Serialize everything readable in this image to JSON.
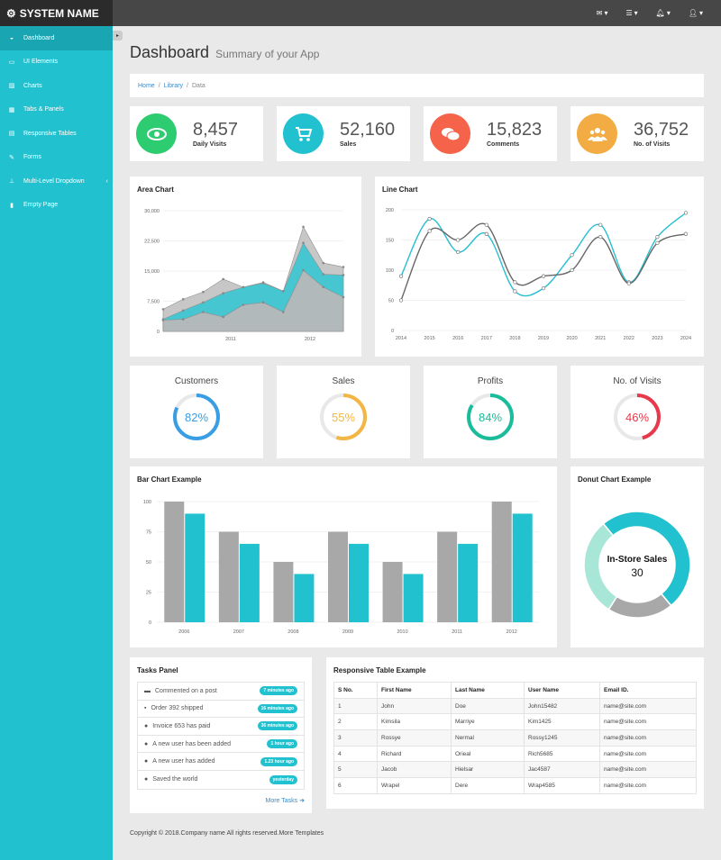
{
  "brand": {
    "name": "SYSTEM NAME",
    "icon": "gear-icon"
  },
  "topbar": {
    "icons": [
      "envelope-icon",
      "tasks-icon",
      "bell-icon",
      "user-icon"
    ]
  },
  "sidebar": {
    "items": [
      {
        "label": "Dashboard",
        "icon": "dashboard-icon",
        "active": true
      },
      {
        "label": "UI Elements",
        "icon": "desktop-icon"
      },
      {
        "label": "Charts",
        "icon": "chart-icon"
      },
      {
        "label": "Tabs & Panels",
        "icon": "table-icon"
      },
      {
        "label": "Responsive Tables",
        "icon": "list-icon"
      },
      {
        "label": "Forms",
        "icon": "edit-icon"
      },
      {
        "label": "Multi-Level Dropdown",
        "icon": "sitemap-icon",
        "caret": true
      },
      {
        "label": "Empty Page",
        "icon": "file-icon"
      }
    ]
  },
  "page": {
    "title": "Dashboard",
    "subtitle": "Summary of your App"
  },
  "breadcrumb": {
    "home": "Home",
    "library": "Library",
    "current": "Data"
  },
  "stats": [
    {
      "value": "8,457",
      "label": "Daily Visits",
      "color": "#2ecc71",
      "icon": "eye-icon"
    },
    {
      "value": "52,160",
      "label": "Sales",
      "color": "#22c1cf",
      "icon": "cart-icon"
    },
    {
      "value": "15,823",
      "label": "Comments",
      "color": "#f4634a",
      "icon": "comments-icon"
    },
    {
      "value": "36,752",
      "label": "No. of Visits",
      "color": "#f3ac44",
      "icon": "users-icon"
    }
  ],
  "area_chart": {
    "title": "Area Chart"
  },
  "line_chart": {
    "title": "Line Chart"
  },
  "gauges": [
    {
      "title": "Customers",
      "value": 82,
      "label": "82%",
      "color": "#3a9ee4"
    },
    {
      "title": "Sales",
      "value": 55,
      "label": "55%",
      "color": "#f3b544"
    },
    {
      "title": "Profits",
      "value": 84,
      "label": "84%",
      "color": "#1bbc9b"
    },
    {
      "title": "No. of Visits",
      "value": 46,
      "label": "46%",
      "color": "#e8394b"
    }
  ],
  "bar_chart": {
    "title": "Bar Chart Example"
  },
  "donut_chart": {
    "title": "Donut Chart Example",
    "center_label": "In-Store Sales",
    "center_value": "30"
  },
  "tasks": {
    "title": "Tasks Panel",
    "items": [
      {
        "icon": "comment-icon",
        "text": "Commented on a post",
        "badge": "7 minutes ago"
      },
      {
        "icon": "truck-icon",
        "text": "Order 392 shipped",
        "badge": "16 minutes ago"
      },
      {
        "icon": "globe-icon",
        "text": "Invoice 653 has paid",
        "badge": "36 minutes ago"
      },
      {
        "icon": "user-icon",
        "text": "A new user has been added",
        "badge": "1 hour ago"
      },
      {
        "icon": "user-icon",
        "text": "A new user has added",
        "badge": "1.23 hour ago"
      },
      {
        "icon": "globe-icon",
        "text": "Saved the world",
        "badge": "yesterday"
      }
    ],
    "more": "More Tasks"
  },
  "table": {
    "title": "Responsive Table Example",
    "headers": [
      "S No.",
      "First Name",
      "Last Name",
      "User Name",
      "Email ID."
    ],
    "rows": [
      [
        "1",
        "John",
        "Doe",
        "John15482",
        "name@site.com"
      ],
      [
        "2",
        "Kimsila",
        "Marriye",
        "Kim1425",
        "name@site.com"
      ],
      [
        "3",
        "Rossye",
        "Nermal",
        "Rossy1245",
        "name@site.com"
      ],
      [
        "4",
        "Richard",
        "Orieal",
        "Rich5685",
        "name@site.com"
      ],
      [
        "5",
        "Jacob",
        "Hielsar",
        "Jac4587",
        "name@site.com"
      ],
      [
        "6",
        "Wrapel",
        "Dere",
        "Wrap4585",
        "name@site.com"
      ]
    ]
  },
  "footer": {
    "text": "Copyright © 2018.Company name All rights reserved.More Templates"
  },
  "chart_data": [
    {
      "type": "area",
      "title": "Area Chart",
      "yticks": [
        "0",
        "7,500",
        "15,000",
        "22,500",
        "30,000"
      ],
      "ylim": [
        0,
        30000
      ],
      "xticks": [
        "2011",
        "2012"
      ],
      "series": [
        {
          "color": "#c4c4c4",
          "values": [
            5500,
            8000,
            9800,
            13000,
            11000,
            12200,
            10000,
            26000,
            17000,
            16000
          ]
        },
        {
          "color": "#3fc6d2",
          "values": [
            3000,
            5200,
            7200,
            9500,
            11000,
            12000,
            10000,
            22000,
            14200,
            14000
          ]
        },
        {
          "color": "#b8b8b8",
          "values": [
            2800,
            3000,
            4800,
            3600,
            6600,
            7200,
            4800,
            15200,
            11000,
            8500
          ]
        }
      ]
    },
    {
      "type": "line",
      "title": "Line Chart",
      "x": [
        2014,
        2015,
        2016,
        2017,
        2018,
        2019,
        2020,
        2021,
        2022,
        2023,
        2024
      ],
      "ylim": [
        0,
        200
      ],
      "yticks": [
        "0",
        "50",
        "100",
        "150",
        "200"
      ],
      "series": [
        {
          "color": "#26bfd0",
          "values": [
            90,
            185,
            130,
            160,
            65,
            70,
            125,
            175,
            80,
            155,
            195
          ]
        },
        {
          "color": "#666666",
          "values": [
            50,
            165,
            150,
            175,
            80,
            90,
            100,
            155,
            78,
            145,
            160
          ]
        }
      ]
    },
    {
      "type": "bar",
      "title": "Bar Chart Example",
      "categories": [
        "2006",
        "2007",
        "2008",
        "2009",
        "2010",
        "2011",
        "2012"
      ],
      "ylim": [
        0,
        100
      ],
      "yticks": [
        "0",
        "25",
        "50",
        "75",
        "100"
      ],
      "series": [
        {
          "color": "#a8a8a8",
          "values": [
            100,
            75,
            50,
            75,
            50,
            75,
            100
          ]
        },
        {
          "color": "#22c1cf",
          "values": [
            90,
            65,
            40,
            65,
            40,
            65,
            90
          ]
        }
      ]
    },
    {
      "type": "pie",
      "title": "Donut Chart Example",
      "slices": [
        {
          "value": 50,
          "color": "#22c1cf"
        },
        {
          "value": 20,
          "color": "#a8a8a8"
        },
        {
          "value": 30,
          "color": "#a8e7d7"
        }
      ]
    }
  ]
}
